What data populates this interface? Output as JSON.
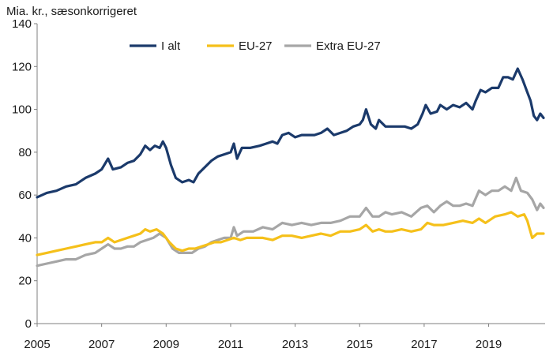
{
  "chart_data": {
    "type": "line",
    "ylabel": "Mia. kr., sæsonkorrigeret",
    "ylim": [
      0,
      140
    ],
    "yticks": [
      0,
      20,
      40,
      60,
      80,
      100,
      120,
      140
    ],
    "xlim": [
      2005,
      2020.75
    ],
    "xticks": [
      "2005",
      "2007",
      "2009",
      "2011",
      "2013",
      "2015",
      "2017",
      "2019"
    ],
    "grid": false,
    "legend": "top-center",
    "series": [
      {
        "name": "I alt",
        "color": "#1b3a6b",
        "points": [
          [
            2005.0,
            59
          ],
          [
            2005.3,
            61
          ],
          [
            2005.6,
            62
          ],
          [
            2005.9,
            64
          ],
          [
            2006.2,
            65
          ],
          [
            2006.5,
            68
          ],
          [
            2006.8,
            70
          ],
          [
            2007.0,
            72
          ],
          [
            2007.2,
            77
          ],
          [
            2007.35,
            72
          ],
          [
            2007.6,
            73
          ],
          [
            2007.8,
            75
          ],
          [
            2008.0,
            76
          ],
          [
            2008.2,
            79
          ],
          [
            2008.35,
            83
          ],
          [
            2008.5,
            81
          ],
          [
            2008.65,
            83
          ],
          [
            2008.8,
            82
          ],
          [
            2008.9,
            85
          ],
          [
            2009.0,
            82
          ],
          [
            2009.15,
            74
          ],
          [
            2009.3,
            68
          ],
          [
            2009.5,
            66
          ],
          [
            2009.7,
            67
          ],
          [
            2009.85,
            66
          ],
          [
            2010.0,
            70
          ],
          [
            2010.2,
            73
          ],
          [
            2010.4,
            76
          ],
          [
            2010.6,
            78
          ],
          [
            2010.8,
            79
          ],
          [
            2011.0,
            80
          ],
          [
            2011.1,
            84
          ],
          [
            2011.2,
            77
          ],
          [
            2011.35,
            82
          ],
          [
            2011.6,
            82
          ],
          [
            2011.9,
            83
          ],
          [
            2012.1,
            84
          ],
          [
            2012.3,
            85
          ],
          [
            2012.45,
            84
          ],
          [
            2012.6,
            88
          ],
          [
            2012.8,
            89
          ],
          [
            2013.0,
            87
          ],
          [
            2013.2,
            88
          ],
          [
            2013.4,
            88
          ],
          [
            2013.6,
            88
          ],
          [
            2013.8,
            89
          ],
          [
            2014.0,
            91
          ],
          [
            2014.2,
            88
          ],
          [
            2014.4,
            89
          ],
          [
            2014.6,
            90
          ],
          [
            2014.8,
            92
          ],
          [
            2015.0,
            93
          ],
          [
            2015.1,
            95
          ],
          [
            2015.2,
            100
          ],
          [
            2015.35,
            93
          ],
          [
            2015.5,
            91
          ],
          [
            2015.6,
            95
          ],
          [
            2015.8,
            92
          ],
          [
            2016.0,
            92
          ],
          [
            2016.2,
            92
          ],
          [
            2016.4,
            92
          ],
          [
            2016.6,
            91
          ],
          [
            2016.8,
            93
          ],
          [
            2016.95,
            98
          ],
          [
            2017.05,
            102
          ],
          [
            2017.2,
            98
          ],
          [
            2017.4,
            99
          ],
          [
            2017.5,
            102
          ],
          [
            2017.7,
            100
          ],
          [
            2017.9,
            102
          ],
          [
            2018.1,
            101
          ],
          [
            2018.3,
            103
          ],
          [
            2018.5,
            100
          ],
          [
            2018.6,
            104
          ],
          [
            2018.75,
            109
          ],
          [
            2018.9,
            108
          ],
          [
            2019.1,
            110
          ],
          [
            2019.3,
            110
          ],
          [
            2019.45,
            115
          ],
          [
            2019.6,
            115
          ],
          [
            2019.75,
            114
          ],
          [
            2019.9,
            119
          ],
          [
            2020.05,
            114
          ],
          [
            2020.2,
            108
          ],
          [
            2020.3,
            104
          ],
          [
            2020.4,
            97
          ],
          [
            2020.5,
            95
          ],
          [
            2020.6,
            98
          ],
          [
            2020.7,
            96
          ]
        ]
      },
      {
        "name": "EU-27",
        "color": "#f5c01a",
        "points": [
          [
            2005.0,
            32
          ],
          [
            2005.3,
            33
          ],
          [
            2005.6,
            34
          ],
          [
            2005.9,
            35
          ],
          [
            2006.2,
            36
          ],
          [
            2006.5,
            37
          ],
          [
            2006.8,
            38
          ],
          [
            2007.0,
            38
          ],
          [
            2007.2,
            40
          ],
          [
            2007.4,
            38
          ],
          [
            2007.6,
            39
          ],
          [
            2007.8,
            40
          ],
          [
            2008.0,
            41
          ],
          [
            2008.2,
            42
          ],
          [
            2008.35,
            44
          ],
          [
            2008.5,
            43
          ],
          [
            2008.7,
            44
          ],
          [
            2008.9,
            42
          ],
          [
            2009.1,
            38
          ],
          [
            2009.3,
            35
          ],
          [
            2009.5,
            34
          ],
          [
            2009.7,
            35
          ],
          [
            2009.9,
            35
          ],
          [
            2010.1,
            36
          ],
          [
            2010.3,
            37
          ],
          [
            2010.5,
            38
          ],
          [
            2010.7,
            38
          ],
          [
            2010.9,
            39
          ],
          [
            2011.1,
            40
          ],
          [
            2011.3,
            39
          ],
          [
            2011.5,
            40
          ],
          [
            2011.8,
            40
          ],
          [
            2012.0,
            40
          ],
          [
            2012.3,
            39
          ],
          [
            2012.6,
            41
          ],
          [
            2012.9,
            41
          ],
          [
            2013.2,
            40
          ],
          [
            2013.5,
            41
          ],
          [
            2013.8,
            42
          ],
          [
            2014.1,
            41
          ],
          [
            2014.4,
            43
          ],
          [
            2014.7,
            43
          ],
          [
            2015.0,
            44
          ],
          [
            2015.2,
            46
          ],
          [
            2015.4,
            43
          ],
          [
            2015.6,
            44
          ],
          [
            2015.8,
            43
          ],
          [
            2016.0,
            43
          ],
          [
            2016.3,
            44
          ],
          [
            2016.6,
            43
          ],
          [
            2016.9,
            44
          ],
          [
            2017.1,
            47
          ],
          [
            2017.3,
            46
          ],
          [
            2017.6,
            46
          ],
          [
            2017.9,
            47
          ],
          [
            2018.2,
            48
          ],
          [
            2018.5,
            47
          ],
          [
            2018.7,
            49
          ],
          [
            2018.9,
            47
          ],
          [
            2019.2,
            50
          ],
          [
            2019.5,
            51
          ],
          [
            2019.7,
            52
          ],
          [
            2019.9,
            50
          ],
          [
            2020.1,
            51
          ],
          [
            2020.2,
            48
          ],
          [
            2020.35,
            40
          ],
          [
            2020.5,
            42
          ],
          [
            2020.7,
            42
          ]
        ]
      },
      {
        "name": "Extra EU-27",
        "color": "#a6a6a6",
        "points": [
          [
            2005.0,
            27
          ],
          [
            2005.3,
            28
          ],
          [
            2005.6,
            29
          ],
          [
            2005.9,
            30
          ],
          [
            2006.2,
            30
          ],
          [
            2006.5,
            32
          ],
          [
            2006.8,
            33
          ],
          [
            2007.0,
            35
          ],
          [
            2007.2,
            37
          ],
          [
            2007.4,
            35
          ],
          [
            2007.6,
            35
          ],
          [
            2007.8,
            36
          ],
          [
            2008.0,
            36
          ],
          [
            2008.2,
            38
          ],
          [
            2008.4,
            39
          ],
          [
            2008.6,
            40
          ],
          [
            2008.8,
            42
          ],
          [
            2009.0,
            40
          ],
          [
            2009.2,
            35
          ],
          [
            2009.4,
            33
          ],
          [
            2009.6,
            33
          ],
          [
            2009.8,
            33
          ],
          [
            2010.0,
            35
          ],
          [
            2010.2,
            36
          ],
          [
            2010.4,
            38
          ],
          [
            2010.6,
            39
          ],
          [
            2010.8,
            40
          ],
          [
            2011.0,
            40
          ],
          [
            2011.1,
            45
          ],
          [
            2011.2,
            41
          ],
          [
            2011.4,
            43
          ],
          [
            2011.7,
            43
          ],
          [
            2012.0,
            45
          ],
          [
            2012.3,
            44
          ],
          [
            2012.6,
            47
          ],
          [
            2012.9,
            46
          ],
          [
            2013.2,
            47
          ],
          [
            2013.5,
            46
          ],
          [
            2013.8,
            47
          ],
          [
            2014.1,
            47
          ],
          [
            2014.4,
            48
          ],
          [
            2014.7,
            50
          ],
          [
            2015.0,
            50
          ],
          [
            2015.2,
            54
          ],
          [
            2015.4,
            50
          ],
          [
            2015.6,
            50
          ],
          [
            2015.8,
            52
          ],
          [
            2016.0,
            51
          ],
          [
            2016.3,
            52
          ],
          [
            2016.6,
            50
          ],
          [
            2016.9,
            54
          ],
          [
            2017.1,
            55
          ],
          [
            2017.3,
            52
          ],
          [
            2017.5,
            55
          ],
          [
            2017.7,
            57
          ],
          [
            2017.9,
            55
          ],
          [
            2018.1,
            55
          ],
          [
            2018.3,
            56
          ],
          [
            2018.5,
            55
          ],
          [
            2018.7,
            62
          ],
          [
            2018.9,
            60
          ],
          [
            2019.1,
            62
          ],
          [
            2019.3,
            62
          ],
          [
            2019.5,
            64
          ],
          [
            2019.7,
            62
          ],
          [
            2019.85,
            68
          ],
          [
            2020.0,
            62
          ],
          [
            2020.2,
            61
          ],
          [
            2020.35,
            58
          ],
          [
            2020.5,
            53
          ],
          [
            2020.6,
            56
          ],
          [
            2020.7,
            54
          ]
        ]
      }
    ]
  }
}
